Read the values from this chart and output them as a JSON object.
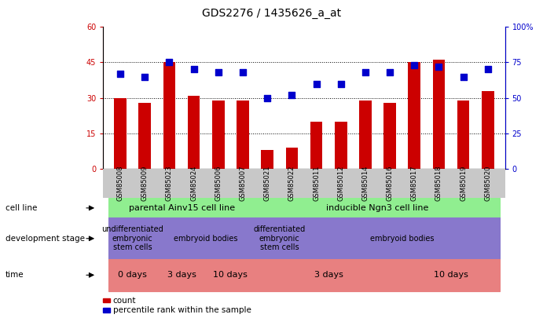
{
  "title": "GDS2276 / 1435626_a_at",
  "samples": [
    "GSM85008",
    "GSM85009",
    "GSM85023",
    "GSM85024",
    "GSM85006",
    "GSM85007",
    "GSM85021",
    "GSM85022",
    "GSM85011",
    "GSM85012",
    "GSM85014",
    "GSM85016",
    "GSM85017",
    "GSM85018",
    "GSM85019",
    "GSM85020"
  ],
  "counts": [
    30,
    28,
    45,
    31,
    29,
    29,
    8,
    9,
    20,
    20,
    29,
    28,
    45,
    46,
    29,
    33
  ],
  "percentiles": [
    67,
    65,
    75,
    70,
    68,
    68,
    50,
    52,
    60,
    60,
    68,
    68,
    73,
    72,
    65,
    70
  ],
  "left_ylim": [
    0,
    60
  ],
  "right_ylim": [
    0,
    100
  ],
  "left_yticks": [
    0,
    15,
    30,
    45,
    60
  ],
  "right_yticks": [
    0,
    25,
    50,
    75,
    100
  ],
  "right_yticklabels": [
    "0",
    "25",
    "50",
    "75",
    "100%"
  ],
  "bar_color": "#cc0000",
  "dot_color": "#0000cc",
  "cell_line_groups": [
    {
      "label": "parental Ainv15 cell line",
      "start": 0,
      "end": 6,
      "color": "#90ee90"
    },
    {
      "label": "inducible Ngn3 cell line",
      "start": 6,
      "end": 16,
      "color": "#90ee90"
    }
  ],
  "dev_stage_groups": [
    {
      "label": "undifferentiated\nembryonic\nstem cells",
      "start": 0,
      "end": 2,
      "color": "#8878cc"
    },
    {
      "label": "embryoid bodies",
      "start": 2,
      "end": 6,
      "color": "#8878cc"
    },
    {
      "label": "differentiated\nembryonic\nstem cells",
      "start": 6,
      "end": 8,
      "color": "#8878cc"
    },
    {
      "label": "embryoid bodies",
      "start": 8,
      "end": 16,
      "color": "#8878cc"
    }
  ],
  "time_groups": [
    {
      "label": "0 days",
      "start": 0,
      "end": 2,
      "color": "#e88080"
    },
    {
      "label": "3 days",
      "start": 2,
      "end": 4,
      "color": "#e88080"
    },
    {
      "label": "10 days",
      "start": 4,
      "end": 6,
      "color": "#e88080"
    },
    {
      "label": "3 days",
      "start": 6,
      "end": 12,
      "color": "#e88080"
    },
    {
      "label": "10 days",
      "start": 12,
      "end": 16,
      "color": "#e88080"
    }
  ],
  "row_labels": [
    "cell line",
    "development stage",
    "time"
  ],
  "legend_count_color": "#cc0000",
  "legend_dot_color": "#0000cc",
  "bar_width": 0.5,
  "dot_size": 40,
  "xtick_bg": "#c8c8c8"
}
